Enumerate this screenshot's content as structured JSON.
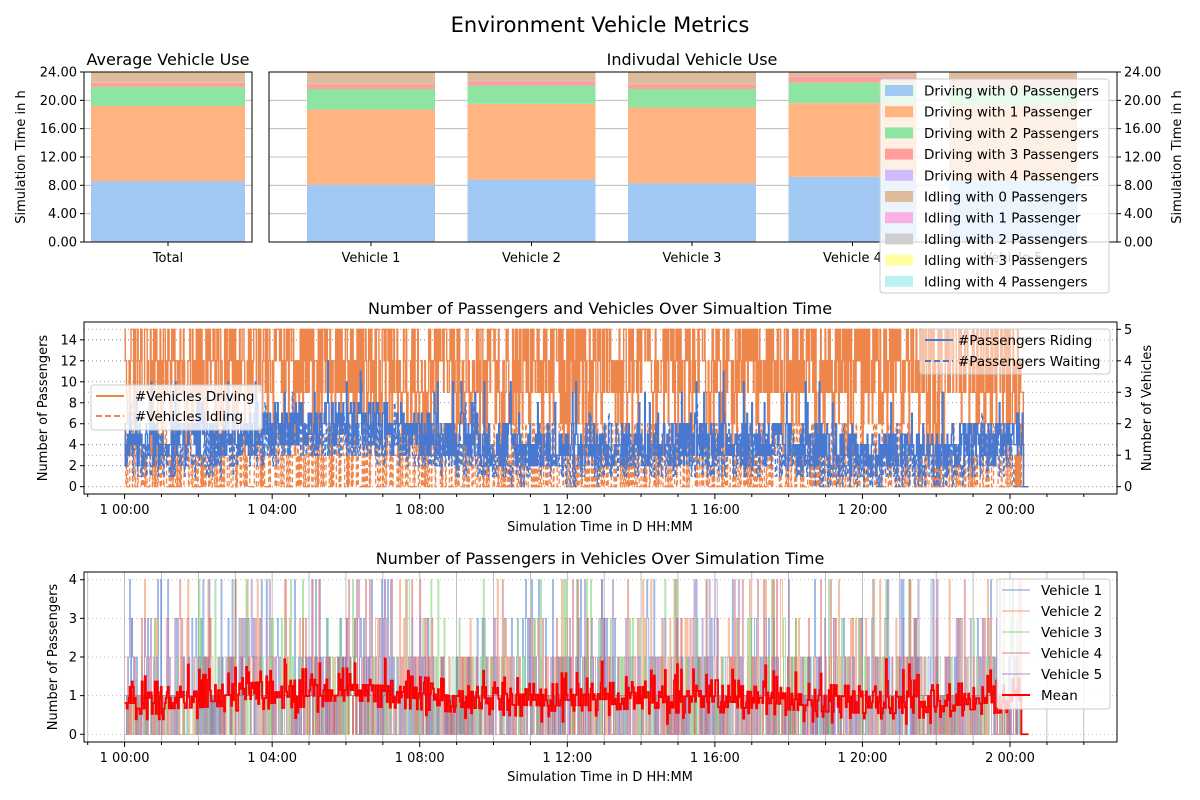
{
  "figure": {
    "title": "Environment Vehicle Metrics"
  },
  "palette": {
    "driving": [
      "#a1c9f4",
      "#ffb482",
      "#8de5a1",
      "#ff9f9b",
      "#d0bbff"
    ],
    "idling": [
      "#debb9b",
      "#fab0e4",
      "#cfcfcf",
      "#fffea3",
      "#b9f2f0"
    ],
    "passengers_blue": "#4878d0",
    "vehicles_orange": "#ee854a",
    "vehicle_lines": [
      "#4878d0",
      "#ee854a",
      "#6acc64",
      "#d65f5f",
      "#956cb4"
    ],
    "mean": "#ff0000"
  },
  "chart_data": [
    {
      "type": "bar",
      "stacked": true,
      "title": "Average Vehicle Use",
      "ylabel": "Simulation Time in h",
      "ylim": [
        0,
        24
      ],
      "yticks": [
        "0.00",
        "4.00",
        "8.00",
        "12.00",
        "16.00",
        "20.00",
        "24.00"
      ],
      "categories": [
        "Total"
      ],
      "series": [
        {
          "name": "Driving with 0 Passengers",
          "values": [
            8.6
          ]
        },
        {
          "name": "Driving with 1 Passenger",
          "values": [
            10.6
          ]
        },
        {
          "name": "Driving with 2 Passengers",
          "values": [
            2.7
          ]
        },
        {
          "name": "Driving with 3 Passengers",
          "values": [
            0.6
          ]
        },
        {
          "name": "Driving with 4 Passengers",
          "values": [
            0.05
          ]
        },
        {
          "name": "Idling with 0 Passengers",
          "values": [
            1.45
          ]
        },
        {
          "name": "Idling with 1 Passenger",
          "values": [
            0
          ]
        },
        {
          "name": "Idling with 2 Passengers",
          "values": [
            0
          ]
        },
        {
          "name": "Idling with 3 Passengers",
          "values": [
            0
          ]
        },
        {
          "name": "Idling with 4 Passengers",
          "values": [
            0
          ]
        }
      ]
    },
    {
      "type": "bar",
      "stacked": true,
      "title": "Indivudal Vehicle Use",
      "ylabel": "Simulation Time in h",
      "ylim": [
        0,
        24
      ],
      "yticks": [
        "0.00",
        "4.00",
        "8.00",
        "12.00",
        "16.00",
        "20.00",
        "24.00"
      ],
      "categories": [
        "Vehicle 1",
        "Vehicle 2",
        "Vehicle 3",
        "Vehicle 4",
        "Vehicle 5"
      ],
      "legend_position": "top-right",
      "series": [
        {
          "name": "Driving with 0 Passengers",
          "values": [
            8.1,
            8.8,
            8.3,
            9.2,
            8.7
          ]
        },
        {
          "name": "Driving with 1 Passenger",
          "values": [
            10.6,
            10.7,
            10.7,
            10.4,
            10.6
          ]
        },
        {
          "name": "Driving with 2 Passengers",
          "values": [
            2.9,
            2.6,
            2.6,
            2.9,
            2.6
          ]
        },
        {
          "name": "Driving with 3 Passengers",
          "values": [
            0.7,
            0.6,
            0.7,
            0.8,
            0.5
          ]
        },
        {
          "name": "Driving with 4 Passengers",
          "values": [
            0.05,
            0.05,
            0.05,
            0.05,
            0.05
          ]
        },
        {
          "name": "Idling with 0 Passengers",
          "values": [
            1.65,
            1.25,
            1.65,
            0.65,
            1.55
          ]
        },
        {
          "name": "Idling with 1 Passenger",
          "values": [
            0,
            0,
            0,
            0,
            0
          ]
        },
        {
          "name": "Idling with 2 Passengers",
          "values": [
            0,
            0,
            0,
            0,
            0
          ]
        },
        {
          "name": "Idling with 3 Passengers",
          "values": [
            0,
            0,
            0,
            0,
            0
          ]
        },
        {
          "name": "Idling with 4 Passengers",
          "values": [
            0,
            0,
            0,
            0,
            0
          ]
        }
      ]
    },
    {
      "type": "line",
      "title": "Number of Passengers and Vehicles Over Simualtion Time",
      "xlabel": "Simulation Time in D HH:MM",
      "ylabel": "Number of Passengers",
      "ylabel_right": "Number of Vehicles",
      "xlim_hours": [
        -1.1,
        26.9
      ],
      "xdata_hours": [
        0,
        24.5
      ],
      "xticks": [
        {
          "hour": 0,
          "label": "1 00:00"
        },
        {
          "hour": 4,
          "label": "1 04:00"
        },
        {
          "hour": 8,
          "label": "1 08:00"
        },
        {
          "hour": 12,
          "label": "1 12:00"
        },
        {
          "hour": 16,
          "label": "1 16:00"
        },
        {
          "hour": 20,
          "label": "1 20:00"
        },
        {
          "hour": 24,
          "label": "2 00:00"
        }
      ],
      "ylim": [
        -0.7,
        15.7
      ],
      "yticks": [
        0,
        2,
        4,
        6,
        8,
        10,
        12,
        14
      ],
      "ylim_right": [
        -0.233,
        5.233
      ],
      "yticks_right": [
        0,
        1,
        2,
        3,
        4,
        5
      ],
      "legend_left": [
        "#Vehicles Driving",
        "#Vehicles Idling"
      ],
      "legend_right": [
        "#Passengers Riding",
        "#Passengers Waiting"
      ],
      "series": [
        {
          "name": "#Passengers Riding",
          "axis": "left",
          "style": "solid",
          "typical_range": [
            0,
            11
          ]
        },
        {
          "name": "#Passengers Waiting",
          "axis": "left",
          "style": "dashed",
          "typical_range": [
            0,
            8
          ]
        },
        {
          "name": "#Vehicles Driving",
          "axis": "right",
          "style": "solid",
          "typical_range": [
            0,
            5
          ]
        },
        {
          "name": "#Vehicles Idling",
          "axis": "right",
          "style": "dashed",
          "typical_range": [
            0,
            2
          ]
        }
      ]
    },
    {
      "type": "line",
      "title": "Number of Passengers in Vehicles Over Simulation Time",
      "xlabel": "Simulation Time in D HH:MM",
      "ylabel": "Number of Passengers",
      "xlim_hours": [
        -1.1,
        26.9
      ],
      "xdata_hours": [
        0,
        24.5
      ],
      "xticks": [
        {
          "hour": 0,
          "label": "1 00:00"
        },
        {
          "hour": 4,
          "label": "1 04:00"
        },
        {
          "hour": 8,
          "label": "1 08:00"
        },
        {
          "hour": 12,
          "label": "1 12:00"
        },
        {
          "hour": 16,
          "label": "1 16:00"
        },
        {
          "hour": 20,
          "label": "1 20:00"
        },
        {
          "hour": 24,
          "label": "2 00:00"
        }
      ],
      "ylim": [
        -0.2,
        4.2
      ],
      "yticks": [
        0,
        1,
        2,
        3,
        4
      ],
      "legend_position": "top-right",
      "series": [
        {
          "name": "Vehicle 1",
          "range": [
            0,
            4
          ]
        },
        {
          "name": "Vehicle 2",
          "range": [
            0,
            4
          ]
        },
        {
          "name": "Vehicle 3",
          "range": [
            0,
            4
          ]
        },
        {
          "name": "Vehicle 4",
          "range": [
            0,
            4
          ]
        },
        {
          "name": "Vehicle 5",
          "range": [
            0,
            4
          ]
        },
        {
          "name": "Mean",
          "range": [
            0,
            2.2
          ]
        }
      ]
    }
  ]
}
